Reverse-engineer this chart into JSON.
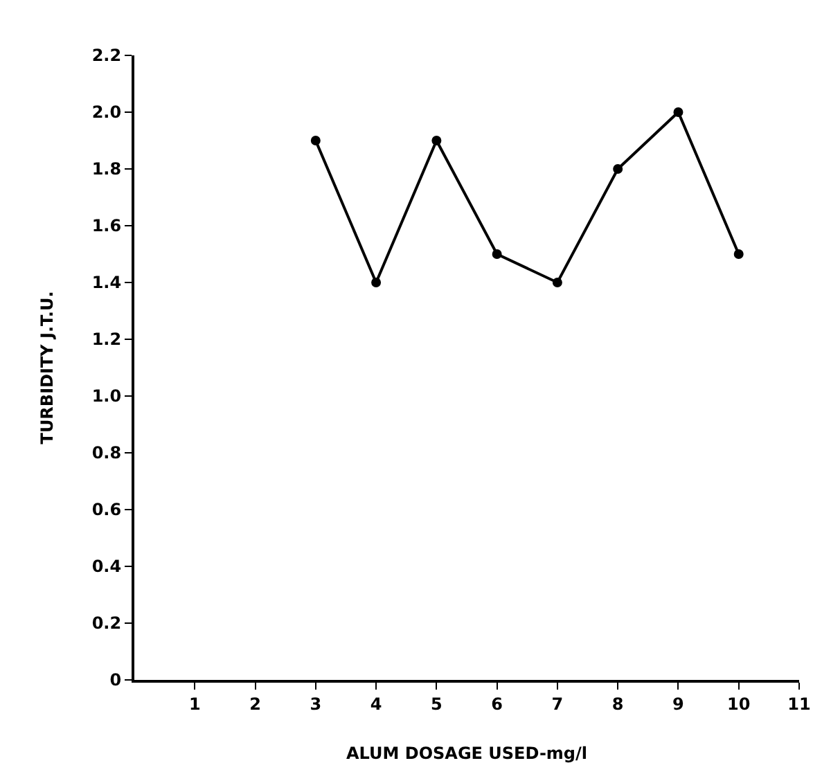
{
  "chart_data": {
    "type": "line",
    "xlabel": "ALUM DOSAGE USED-mg/l",
    "ylabel": "TURBIDITY J.T.U.",
    "x": [
      3,
      4,
      5,
      6,
      7,
      8,
      9,
      10
    ],
    "series": [
      {
        "color": "#000000",
        "values": [
          1.9,
          1.4,
          1.9,
          1.5,
          1.4,
          1.8,
          2.0,
          1.5
        ]
      }
    ],
    "xlim": [
      0,
      11
    ],
    "xticks": [
      1,
      2,
      3,
      4,
      5,
      6,
      7,
      8,
      9,
      10,
      11
    ],
    "ylim": [
      0,
      2.2
    ],
    "yticks": [
      {
        "value": 0,
        "label": "0"
      },
      {
        "value": 0.2,
        "label": "0.2"
      },
      {
        "value": 0.4,
        "label": "0.4"
      },
      {
        "value": 0.6,
        "label": "0.6"
      },
      {
        "value": 0.8,
        "label": "0.8"
      },
      {
        "value": 1.0,
        "label": "1.0"
      },
      {
        "value": 1.2,
        "label": "1.2"
      },
      {
        "value": 1.4,
        "label": "1.4"
      },
      {
        "value": 1.6,
        "label": "1.6"
      },
      {
        "value": 1.8,
        "label": "1.8"
      },
      {
        "value": 2.0,
        "label": "2.0"
      },
      {
        "value": 2.2,
        "label": "2.2"
      }
    ],
    "grid": false,
    "marker": "circle",
    "line_style": "solid"
  }
}
